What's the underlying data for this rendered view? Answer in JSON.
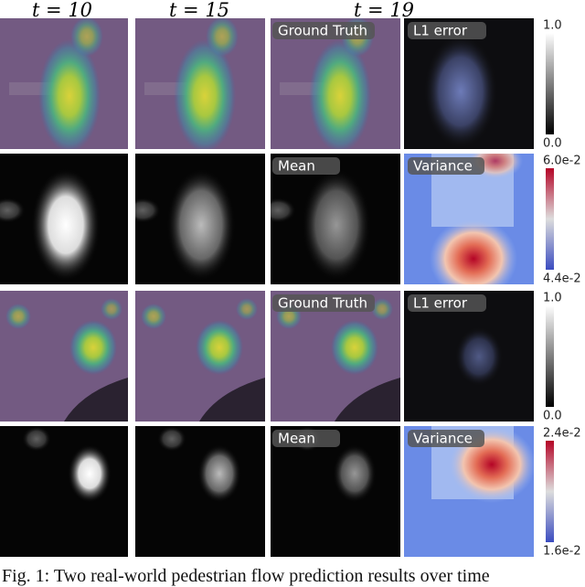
{
  "column_headers": [
    "t = 10",
    "t = 15",
    "t = 19"
  ],
  "blocks": [
    {
      "panel_labels": {
        "ground_truth": "Ground Truth",
        "l1_error": "L1 error",
        "mean": "Mean",
        "variance": "Variance"
      },
      "colorbars": [
        {
          "max": "1.0",
          "min": "0.0"
        },
        {
          "max": "6.0e-2",
          "min": "4.4e-2"
        }
      ]
    },
    {
      "panel_labels": {
        "ground_truth": "Ground Truth",
        "l1_error": "L1 error",
        "mean": "Mean",
        "variance": "Variance"
      },
      "colorbars": [
        {
          "max": "1.0",
          "min": "0.0"
        },
        {
          "max": "2.4e-2",
          "min": "1.6e-2"
        }
      ]
    }
  ],
  "caption": "Fig. 1: Two real-world pedestrian flow prediction results over time"
}
